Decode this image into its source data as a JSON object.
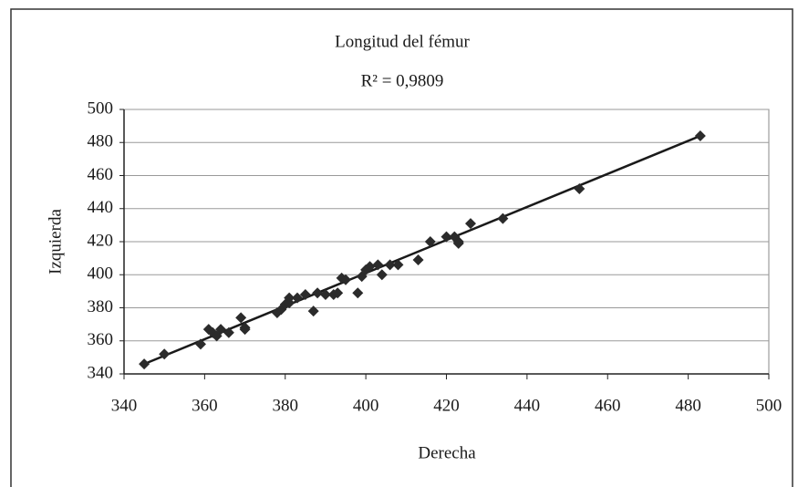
{
  "chart_data": {
    "type": "scatter",
    "title": "Longitud del fémur",
    "subtitle": "R² = 0,9809",
    "xlabel": "Derecha",
    "ylabel": "Izquierda",
    "x": [
      345,
      350,
      359,
      361,
      362,
      363,
      364,
      366,
      369,
      370,
      370,
      378,
      379,
      380,
      381,
      381,
      383,
      385,
      387,
      388,
      390,
      392,
      393,
      394,
      395,
      398,
      399,
      400,
      401,
      403,
      404,
      406,
      408,
      413,
      416,
      420,
      422,
      423,
      423,
      426,
      434,
      453,
      483
    ],
    "values": [
      346,
      352,
      358,
      367,
      365,
      363,
      367,
      365,
      374,
      368,
      367,
      377,
      379,
      382,
      386,
      383,
      386,
      388,
      378,
      389,
      388,
      388,
      389,
      398,
      397,
      389,
      399,
      403,
      405,
      406,
      400,
      406,
      406,
      409,
      420,
      423,
      423,
      420,
      419,
      431,
      434,
      452,
      484
    ],
    "color": "#2b2b2b",
    "trendline": {
      "x": [
        345,
        483
      ],
      "y": [
        346,
        484
      ],
      "color": "#1a1a1a"
    },
    "xlim": [
      340,
      500
    ],
    "ylim": [
      340,
      500
    ],
    "xticks": [
      340,
      360,
      380,
      400,
      420,
      440,
      460,
      480,
      500
    ],
    "yticks": [
      340,
      360,
      380,
      400,
      420,
      440,
      460,
      480,
      500
    ],
    "grid": true
  }
}
